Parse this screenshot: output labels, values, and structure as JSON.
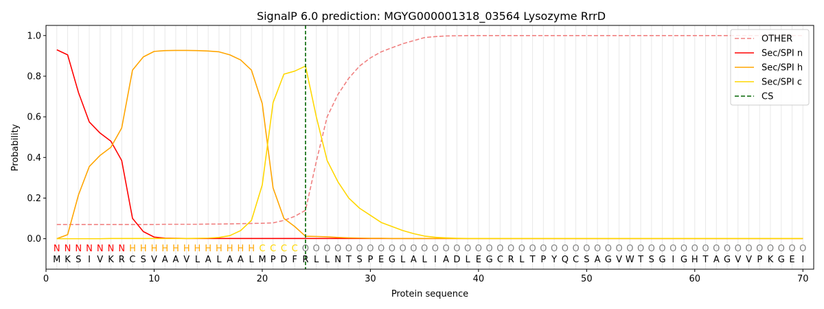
{
  "chart_data": {
    "type": "line",
    "title": "SignalP 6.0 prediction: MGYG000001318_03564 Lysozyme RrrD",
    "xlabel": "Protein sequence",
    "ylabel": "Probability",
    "xlim": [
      0,
      71
    ],
    "ylim": [
      -0.15,
      1.05
    ],
    "x_ticks": [
      0,
      10,
      20,
      30,
      40,
      50,
      60,
      70
    ],
    "y_ticks": [
      0.0,
      0.2,
      0.4,
      0.6,
      0.8,
      1.0
    ],
    "x_tick_labels": [
      "0",
      "10",
      "20",
      "30",
      "40",
      "50",
      "60",
      "70"
    ],
    "y_tick_labels": [
      "0.0",
      "0.2",
      "0.4",
      "0.6",
      "0.8",
      "1.0"
    ],
    "grid": "vertical lines at each residue",
    "legend_position": "top-right",
    "sequence": [
      "M",
      "K",
      "S",
      "I",
      "V",
      "K",
      "R",
      "C",
      "S",
      "V",
      "A",
      "A",
      "V",
      "L",
      "A",
      "L",
      "A",
      "A",
      "L",
      "M",
      "P",
      "D",
      "F",
      "R",
      "L",
      "L",
      "N",
      "T",
      "S",
      "P",
      "E",
      "G",
      "L",
      "A",
      "L",
      "I",
      "A",
      "D",
      "L",
      "E",
      "G",
      "C",
      "R",
      "L",
      "T",
      "P",
      "Y",
      "Q",
      "C",
      "S",
      "A",
      "G",
      "V",
      "W",
      "T",
      "S",
      "G",
      "I",
      "G",
      "H",
      "T",
      "A",
      "G",
      "V",
      "V",
      "P",
      "K",
      "G",
      "E",
      "I"
    ],
    "region_labels": [
      "N",
      "N",
      "N",
      "N",
      "N",
      "N",
      "N",
      "H",
      "H",
      "H",
      "H",
      "H",
      "H",
      "H",
      "H",
      "H",
      "H",
      "H",
      "H",
      "C",
      "C",
      "C",
      "C",
      "O",
      "O",
      "O",
      "O",
      "O",
      "O",
      "O",
      "O",
      "O",
      "O",
      "O",
      "O",
      "O",
      "O",
      "O",
      "O",
      "O",
      "O",
      "O",
      "O",
      "O",
      "O",
      "O",
      "O",
      "O",
      "O",
      "O",
      "O",
      "O",
      "O",
      "O",
      "O",
      "O",
      "O",
      "O",
      "O",
      "O",
      "O",
      "O",
      "O",
      "O",
      "O",
      "O",
      "O",
      "O",
      "O",
      "O"
    ],
    "region_colors": {
      "N": "#ff0000",
      "H": "#ffa500",
      "C": "#ffd700",
      "O": "#808080"
    },
    "cleavage_site": 24,
    "series": [
      {
        "name": "OTHER",
        "color": "#f08080",
        "dash": true,
        "values": [
          0.07,
          0.07,
          0.07,
          0.07,
          0.07,
          0.07,
          0.07,
          0.07,
          0.07,
          0.07,
          0.071,
          0.071,
          0.071,
          0.071,
          0.072,
          0.072,
          0.073,
          0.074,
          0.075,
          0.076,
          0.078,
          0.09,
          0.11,
          0.14,
          0.38,
          0.6,
          0.71,
          0.79,
          0.85,
          0.89,
          0.92,
          0.94,
          0.96,
          0.975,
          0.99,
          0.995,
          0.998,
          0.999,
          1.0,
          1.0,
          1.0,
          1.0,
          1.0,
          1.0,
          1.0,
          1.0,
          1.0,
          1.0,
          1.0,
          1.0,
          1.0,
          1.0,
          1.0,
          1.0,
          1.0,
          1.0,
          1.0,
          1.0,
          1.0,
          1.0,
          1.0,
          1.0,
          1.0,
          1.0,
          1.0,
          1.0,
          1.0,
          1.0,
          1.0,
          1.0
        ]
      },
      {
        "name": "Sec/SPI n",
        "color": "#ff0000",
        "dash": false,
        "values": [
          0.93,
          0.905,
          0.72,
          0.575,
          0.52,
          0.48,
          0.385,
          0.1,
          0.035,
          0.008,
          0.003,
          0.002,
          0.001,
          0.001,
          0.001,
          0.001,
          0.001,
          0.001,
          0.001,
          0.001,
          0.001,
          0.001,
          0.001,
          0.001,
          0.001,
          0.001,
          0.001,
          0.001,
          0.001,
          0.001,
          0.001,
          0.001,
          0.001,
          0.001,
          0.001,
          0.001,
          0.001,
          0.001,
          0.001,
          0.001,
          0.001,
          0.001,
          0.001,
          0.001,
          0.001,
          0.001,
          0.001,
          0.001,
          0.001,
          0.001,
          0.001,
          0.001,
          0.001,
          0.001,
          0.001,
          0.001,
          0.001,
          0.001,
          0.001,
          0.001,
          0.001,
          0.001,
          0.001,
          0.001,
          0.001,
          0.001,
          0.001,
          0.001,
          0.001,
          0.001
        ]
      },
      {
        "name": "Sec/SPI h",
        "color": "#ffa500",
        "dash": false,
        "values": [
          0.0,
          0.02,
          0.215,
          0.355,
          0.41,
          0.45,
          0.545,
          0.83,
          0.895,
          0.922,
          0.926,
          0.927,
          0.927,
          0.926,
          0.924,
          0.92,
          0.905,
          0.88,
          0.83,
          0.665,
          0.25,
          0.1,
          0.06,
          0.012,
          0.011,
          0.009,
          0.006,
          0.004,
          0.003,
          0.002,
          0.002,
          0.001,
          0.001,
          0.001,
          0.001,
          0.001,
          0.001,
          0.001,
          0.001,
          0.001,
          0.001,
          0.001,
          0.001,
          0.001,
          0.001,
          0.001,
          0.001,
          0.001,
          0.001,
          0.001,
          0.001,
          0.001,
          0.001,
          0.001,
          0.001,
          0.001,
          0.001,
          0.001,
          0.001,
          0.001,
          0.001,
          0.001,
          0.001,
          0.001,
          0.001,
          0.001,
          0.001,
          0.001,
          0.001,
          0.001
        ]
      },
      {
        "name": "Sec/SPI c",
        "color": "#ffd700",
        "dash": false,
        "values": [
          0.0,
          0.0,
          0.0,
          0.0,
          0.0,
          0.001,
          0.001,
          0.001,
          0.001,
          0.001,
          0.001,
          0.001,
          0.001,
          0.002,
          0.003,
          0.006,
          0.015,
          0.04,
          0.09,
          0.265,
          0.67,
          0.81,
          0.825,
          0.85,
          0.6,
          0.385,
          0.28,
          0.2,
          0.15,
          0.115,
          0.08,
          0.06,
          0.04,
          0.025,
          0.013,
          0.007,
          0.004,
          0.002,
          0.001,
          0.001,
          0.001,
          0.001,
          0.001,
          0.001,
          0.001,
          0.001,
          0.001,
          0.001,
          0.001,
          0.001,
          0.001,
          0.001,
          0.001,
          0.001,
          0.001,
          0.001,
          0.001,
          0.001,
          0.001,
          0.001,
          0.001,
          0.001,
          0.001,
          0.001,
          0.001,
          0.001,
          0.001,
          0.001,
          0.001,
          0.001
        ]
      }
    ],
    "legend": [
      {
        "label": "OTHER",
        "color": "#f08080",
        "dash": true
      },
      {
        "label": "Sec/SPI n",
        "color": "#ff0000",
        "dash": false
      },
      {
        "label": "Sec/SPI h",
        "color": "#ffa500",
        "dash": false
      },
      {
        "label": "Sec/SPI c",
        "color": "#ffd700",
        "dash": false
      },
      {
        "label": "CS",
        "color": "#006400",
        "dash": true
      }
    ]
  }
}
